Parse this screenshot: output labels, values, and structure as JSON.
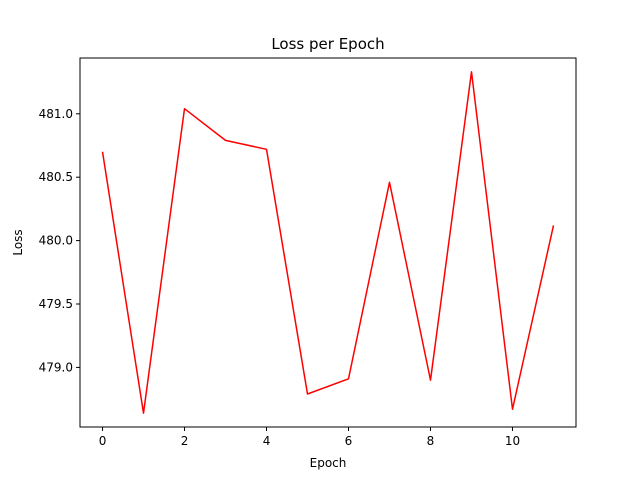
{
  "chart_data": {
    "type": "line",
    "title": "Loss per Epoch",
    "xlabel": "Epoch",
    "ylabel": "Loss",
    "xlim": [
      -0.55,
      11.55
    ],
    "ylim": [
      478.53,
      481.44
    ],
    "xticks": [
      0,
      2,
      4,
      6,
      8,
      10
    ],
    "xtick_labels": [
      "0",
      "2",
      "4",
      "6",
      "8",
      "10"
    ],
    "yticks": [
      479.0,
      479.5,
      480.0,
      480.5,
      481.0
    ],
    "ytick_labels": [
      "479.0",
      "479.5",
      "480.0",
      "480.5",
      "481.0"
    ],
    "grid": false,
    "series": [
      {
        "color": "#ff0000",
        "x": [
          0,
          1,
          2,
          3,
          4,
          5,
          6,
          7,
          8,
          9,
          10,
          11
        ],
        "y": [
          480.7,
          478.64,
          481.04,
          480.79,
          480.72,
          478.79,
          478.91,
          480.46,
          478.9,
          481.33,
          478.67,
          480.12
        ]
      }
    ]
  }
}
